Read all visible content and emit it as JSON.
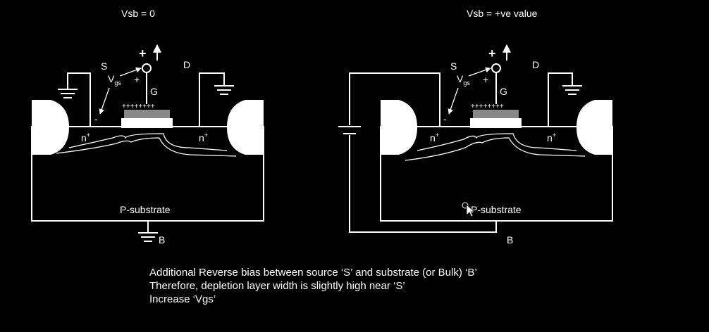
{
  "left": {
    "title": "Vsb = 0",
    "source": "S",
    "drain": "D",
    "gate": "G",
    "vgs_main": "V",
    "vgs_sub": "gs",
    "plus_big": "+",
    "plus_small": "+",
    "minus": "-",
    "gate_charges": "++++++++",
    "channel_charges": "--------",
    "n_left": "n",
    "n_right": "n",
    "n_sup": "+",
    "substrate": "P-substrate",
    "bulk": "B"
  },
  "right": {
    "title": "Vsb = +ve value",
    "source": "S",
    "drain": "D",
    "gate": "G",
    "vgs_main": "V",
    "vgs_sub": "gs",
    "plus_big": "+",
    "plus_small": "+",
    "minus": "-",
    "gate_charges": "++++++++",
    "channel_charges": "--------",
    "n_left": "n",
    "n_right": "n",
    "n_sup": "+",
    "substrate": "P-substrate",
    "bulk": "B"
  },
  "notes": [
    "Additional Reverse bias between source ‘S’ and substrate (or Bulk) ‘B’",
    "Therefore, depletion layer width is slightly high near ‘S’",
    "Increase ‘Vgs’"
  ]
}
